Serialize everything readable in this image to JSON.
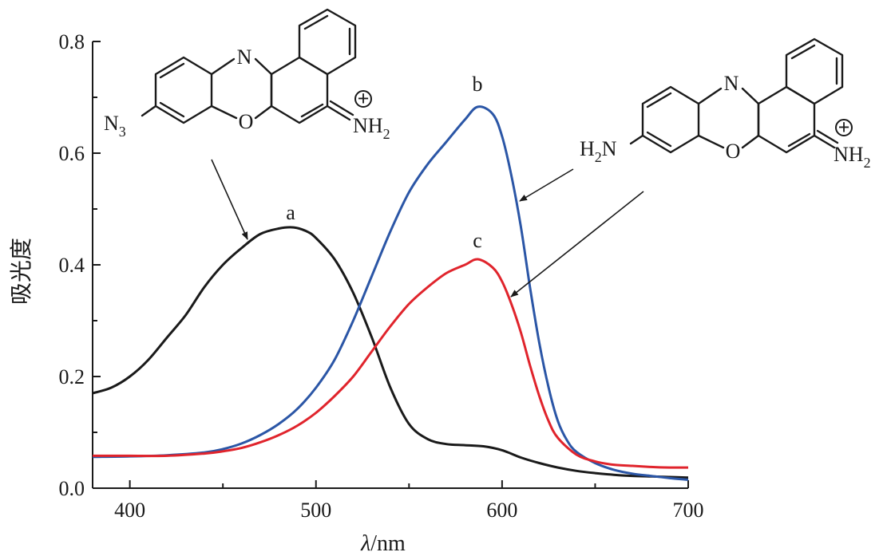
{
  "chart_data": {
    "type": "line",
    "xlabel_italic": "λ",
    "xlabel_unit": "/nm",
    "ylabel": "吸光度",
    "xlim": [
      380,
      700
    ],
    "ylim": [
      0.0,
      0.8
    ],
    "x_ticks": [
      400,
      500,
      600,
      700
    ],
    "x_tick_labels": [
      "400",
      "500",
      "600",
      "700"
    ],
    "y_ticks": [
      0.0,
      0.2,
      0.4,
      0.6,
      0.8
    ],
    "y_tick_labels": [
      "0.0",
      "0.2",
      "0.4",
      "0.6",
      "0.8"
    ],
    "grid": false,
    "series": [
      {
        "label": "a",
        "color": "#1a1a1a",
        "x": [
          380,
          390,
          400,
          410,
          420,
          430,
          440,
          450,
          460,
          470,
          480,
          488,
          495,
          500,
          510,
          520,
          530,
          540,
          550,
          560,
          570,
          580,
          590,
          600,
          610,
          620,
          630,
          640,
          650,
          660,
          670,
          680,
          690,
          700
        ],
        "y": [
          0.17,
          0.18,
          0.2,
          0.23,
          0.27,
          0.31,
          0.36,
          0.4,
          0.43,
          0.455,
          0.465,
          0.467,
          0.46,
          0.448,
          0.41,
          0.35,
          0.27,
          0.18,
          0.115,
          0.088,
          0.079,
          0.077,
          0.075,
          0.068,
          0.055,
          0.045,
          0.037,
          0.031,
          0.027,
          0.024,
          0.022,
          0.021,
          0.02,
          0.019
        ]
      },
      {
        "label": "b",
        "color": "#2b56a6",
        "x": [
          380,
          400,
          420,
          440,
          450,
          460,
          470,
          480,
          490,
          500,
          510,
          520,
          530,
          540,
          550,
          560,
          570,
          580,
          587,
          595,
          600,
          605,
          610,
          615,
          620,
          625,
          630,
          635,
          640,
          650,
          660,
          670,
          680,
          690,
          700
        ],
        "y": [
          0.056,
          0.057,
          0.059,
          0.064,
          0.07,
          0.08,
          0.095,
          0.115,
          0.142,
          0.18,
          0.23,
          0.3,
          0.38,
          0.46,
          0.53,
          0.58,
          0.62,
          0.66,
          0.683,
          0.67,
          0.63,
          0.56,
          0.47,
          0.36,
          0.26,
          0.18,
          0.12,
          0.085,
          0.065,
          0.045,
          0.033,
          0.026,
          0.022,
          0.018,
          0.015
        ]
      },
      {
        "label": "c",
        "color": "#e0242c",
        "x": [
          380,
          400,
          420,
          440,
          450,
          460,
          470,
          480,
          490,
          500,
          510,
          520,
          530,
          540,
          550,
          560,
          570,
          580,
          587,
          595,
          600,
          605,
          610,
          615,
          620,
          625,
          630,
          640,
          650,
          660,
          670,
          680,
          690,
          700
        ],
        "y": [
          0.058,
          0.058,
          0.058,
          0.062,
          0.066,
          0.072,
          0.082,
          0.095,
          0.112,
          0.135,
          0.165,
          0.2,
          0.245,
          0.29,
          0.33,
          0.36,
          0.385,
          0.4,
          0.41,
          0.395,
          0.37,
          0.33,
          0.28,
          0.22,
          0.165,
          0.12,
          0.09,
          0.06,
          0.048,
          0.042,
          0.04,
          0.038,
          0.037,
          0.037
        ]
      }
    ],
    "annotations": {
      "structure_left": {
        "substituent": "N",
        "substituent_sub": "3",
        "ring_n": "N",
        "ring_o": "O",
        "iminium": "NH",
        "iminium_sub": "2",
        "charge": "+"
      },
      "structure_right": {
        "substituent": "H",
        "substituent_sub": "2",
        "substituent_tail": "N",
        "ring_n": "N",
        "ring_o": "O",
        "iminium": "NH",
        "iminium_sub": "2",
        "charge": "+"
      }
    }
  }
}
